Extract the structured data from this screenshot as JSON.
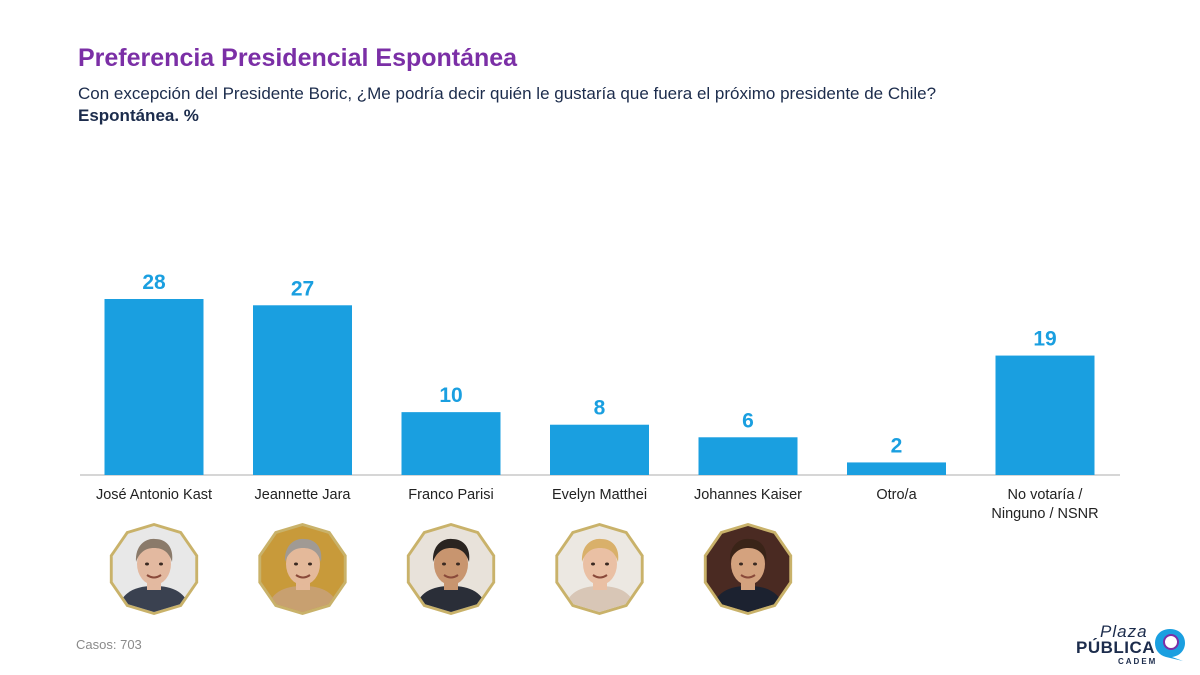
{
  "header": {
    "title": "Preferencia Presidencial Espontánea",
    "subtitle": "Con excepción del Presidente Boric, ¿Me podría decir quién le gustaría que fuera el próximo presidente de Chile?",
    "unit_label": "Espontánea. %"
  },
  "chart_data": {
    "type": "bar",
    "title": "Preferencia Presidencial Espontánea",
    "categories": [
      [
        "José Antonio Kast"
      ],
      [
        "Jeannette Jara"
      ],
      [
        "Franco Parisi"
      ],
      [
        "Evelyn Matthei"
      ],
      [
        "Johannes Kaiser"
      ],
      [
        "Otro/a"
      ],
      [
        "No votaría /",
        "Ninguno / NSNR"
      ]
    ],
    "values": [
      28,
      27,
      10,
      8,
      6,
      2,
      19
    ],
    "xlabel": "",
    "ylabel": "%",
    "ylim": [
      0,
      30
    ],
    "bar_color": "#1a9fe0",
    "value_color": "#1a9fe0"
  },
  "portraits": [
    {
      "name": "José Antonio Kast",
      "icon": "portrait-kast-icon",
      "bg": "#e8e8e8",
      "skin": "#e3b9a0",
      "hair": "#8a7a6a",
      "suit": "#3a4150"
    },
    {
      "name": "Jeannette Jara",
      "icon": "portrait-jara-icon",
      "bg": "#c89a3a",
      "skin": "#e4b99a",
      "hair": "#a09a94",
      "suit": "#c8a070"
    },
    {
      "name": "Franco Parisi",
      "icon": "portrait-parisi-icon",
      "bg": "#e8e2da",
      "skin": "#c8956f",
      "hair": "#2a2420",
      "suit": "#2a2e38"
    },
    {
      "name": "Evelyn Matthei",
      "icon": "portrait-matthei-icon",
      "bg": "#ece8e2",
      "skin": "#eac0a4",
      "hair": "#d9b06a",
      "suit": "#d8c6b6"
    },
    {
      "name": "Johannes Kaiser",
      "icon": "portrait-kaiser-icon",
      "bg": "#4a2a22",
      "skin": "#d4a27e",
      "hair": "#3a2418",
      "suit": "#1c2230"
    }
  ],
  "footer": {
    "cases_label": "Casos:",
    "cases_value": "703"
  },
  "logo": {
    "line1": "Plaza",
    "line2": "PÚBLICA",
    "line3": "CADEM",
    "accent": "#1a9fe0",
    "accent2": "#7b2fa6"
  }
}
